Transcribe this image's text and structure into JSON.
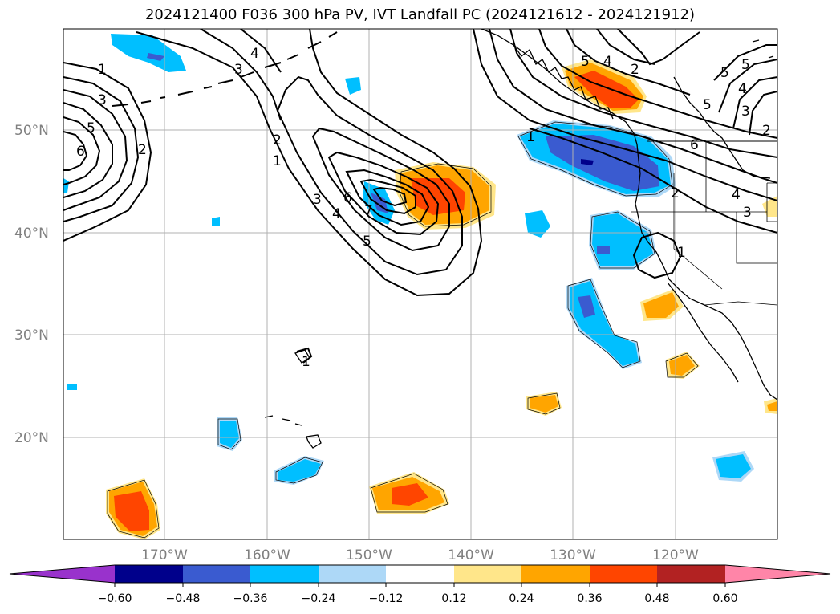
{
  "title": "2024121400 F036 300 hPa PV, IVT Landfall PC (2024121612 - 2024121912)",
  "colors": {
    "neg_extreme": "#9932cc",
    "neg_060": "#00008b",
    "neg_048": "#3a5bd0",
    "neg_036": "#00bfff",
    "neg_024": "#add8f7",
    "pos_024": "#ffe68a",
    "pos_036": "#ffa500",
    "pos_048": "#ff4500",
    "pos_060": "#b22222",
    "pos_extreme": "#ff85a8",
    "contour": "#000000",
    "grid": "#b0b0b0",
    "axis_label": "#808080"
  },
  "axes": {
    "lat_labels": [
      "50°N",
      "40°N",
      "30°N",
      "20°N"
    ],
    "lon_labels": [
      "170°W",
      "160°W",
      "150°W",
      "140°W",
      "130°W",
      "120°W"
    ]
  },
  "colorbar": {
    "ticks": [
      "−0.60",
      "−0.48",
      "−0.36",
      "−0.24",
      "−0.12",
      "0.12",
      "0.24",
      "0.36",
      "0.48",
      "0.60"
    ]
  },
  "contour_labels": [
    "1",
    "2",
    "3",
    "4",
    "5",
    "6",
    "7"
  ]
}
